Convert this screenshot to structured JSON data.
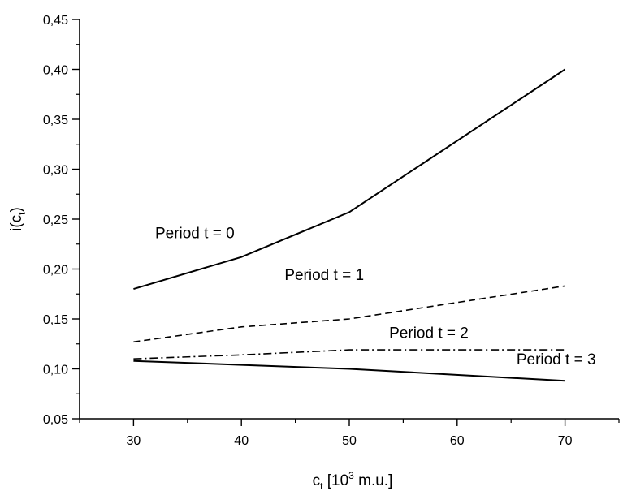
{
  "chart_data": {
    "type": "line",
    "title": "",
    "xlabel": "c, [10³ m.u.]",
    "xlabel_parts": {
      "base": "c",
      "sub": "t",
      "rest": " [10",
      "sup": "3",
      "tail": " m.u.]"
    },
    "ylabel": "i(c_t)",
    "ylabel_parts": {
      "base": "i(c",
      "sub": "t",
      "tail": ")"
    },
    "xlim": [
      25,
      75
    ],
    "ylim": [
      0.05,
      0.45
    ],
    "x_ticks": [
      30,
      40,
      50,
      60,
      70
    ],
    "x_tick_labels": [
      "30",
      "40",
      "50",
      "60",
      "70"
    ],
    "y_ticks": [
      0.05,
      0.1,
      0.15,
      0.2,
      0.25,
      0.3,
      0.35,
      0.4,
      0.45
    ],
    "y_tick_labels": [
      "0,05",
      "0,10",
      "0,15",
      "0,20",
      "0,25",
      "0,30",
      "0,35",
      "0,40",
      "0,45"
    ],
    "grid": false,
    "series": [
      {
        "name": "Period t = 0",
        "line_style": "solid",
        "color": "#000000",
        "x": [
          30,
          40,
          50,
          70
        ],
        "y": [
          0.18,
          0.212,
          0.257,
          0.4
        ],
        "label_at": [
          32,
          0.231
        ]
      },
      {
        "name": "Period t = 1",
        "line_style": "dashed",
        "color": "#000000",
        "x": [
          30,
          40,
          50,
          70
        ],
        "y": [
          0.127,
          0.142,
          0.15,
          0.183
        ],
        "label_at": [
          44,
          0.189
        ]
      },
      {
        "name": "Period t = 2",
        "line_style": "dashdot",
        "color": "#000000",
        "x": [
          30,
          40,
          50,
          70
        ],
        "y": [
          0.11,
          0.114,
          0.119,
          0.119
        ],
        "label_at": [
          53.7,
          0.131
        ]
      },
      {
        "name": "Period t = 3",
        "line_style": "solid",
        "color": "#000000",
        "x": [
          30,
          40,
          50,
          70
        ],
        "y": [
          0.108,
          0.104,
          0.1,
          0.088
        ],
        "label_at": [
          65.5,
          0.1045
        ]
      }
    ]
  }
}
